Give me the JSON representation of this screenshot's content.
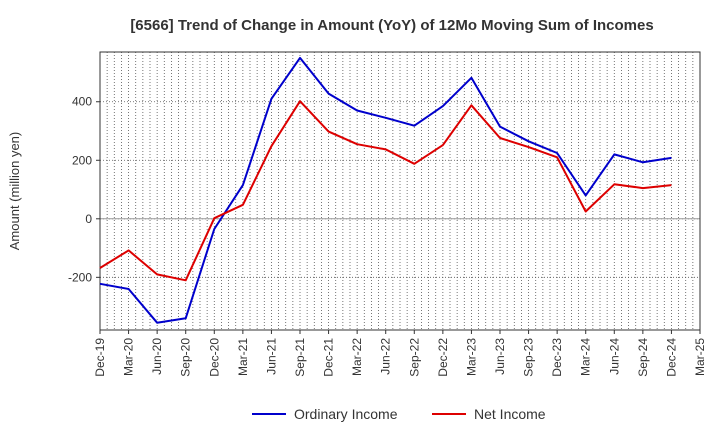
{
  "chart_data": {
    "type": "line",
    "title": "[6566]  Trend of Change in Amount (YoY) of 12Mo Moving Sum of Incomes",
    "ylabel": "Amount (million yen)",
    "xlabel": "",
    "ylim": [
      -380,
      570
    ],
    "yticks": [
      -200,
      0,
      200,
      400
    ],
    "grid": true,
    "legend_position": "bottom",
    "categories": [
      "Dec-19",
      "Mar-20",
      "Jun-20",
      "Sep-20",
      "Dec-20",
      "Mar-21",
      "Jun-21",
      "Sep-21",
      "Dec-21",
      "Mar-22",
      "Jun-22",
      "Sep-22",
      "Dec-22",
      "Mar-23",
      "Jun-23",
      "Sep-23",
      "Dec-23",
      "Mar-24",
      "Jun-24",
      "Sep-24",
      "Dec-24",
      "Mar-25"
    ],
    "series": [
      {
        "name": "Ordinary Income",
        "color": "#0000cc",
        "values": [
          -222,
          -240,
          -355,
          -340,
          -35,
          115,
          410,
          550,
          428,
          370,
          345,
          318,
          385,
          482,
          315,
          265,
          225,
          80,
          220,
          193,
          208,
          null
        ]
      },
      {
        "name": "Net Income",
        "color": "#dd0000",
        "values": [
          -168,
          -108,
          -190,
          -210,
          2,
          48,
          248,
          402,
          298,
          255,
          237,
          188,
          252,
          388,
          276,
          245,
          210,
          25,
          118,
          105,
          115,
          null
        ]
      }
    ]
  }
}
